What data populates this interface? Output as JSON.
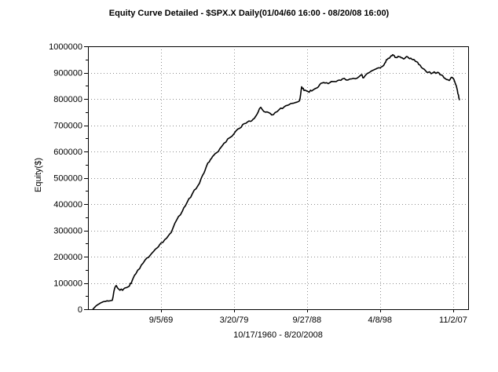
{
  "chart_data": {
    "type": "line",
    "title": "Equity Curve Detailed - $SPX.X Daily(01/04/60 16:00 - 08/20/08 16:00)",
    "date_range": "10/17/1960 - 8/20/2008",
    "ylabel": "Equity($)",
    "ylim": [
      0,
      1000000
    ],
    "xlim_decimal_years": [
      1960.14,
      2009.79
    ],
    "grid": "dotted gray at every 100000 horizontally and at each x tick vertically",
    "legend": "none",
    "line_color": "#000000",
    "y_ticks": [
      1000000,
      900000,
      800000,
      700000,
      600000,
      500000,
      400000,
      300000,
      200000,
      100000,
      0
    ],
    "y_minor_tick_step": 50000,
    "x_ticks": [
      {
        "label": "9/5/69",
        "date": 1969.68
      },
      {
        "label": "3/20/79",
        "date": 1979.22
      },
      {
        "label": "9/27/88",
        "date": 1988.74
      },
      {
        "label": "4/8/98",
        "date": 1998.27
      },
      {
        "label": "11/2/07",
        "date": 2007.84
      }
    ],
    "series": [
      {
        "name": "Equity",
        "points": [
          [
            1960.79,
            0
          ],
          [
            1961.17,
            12000
          ],
          [
            1961.58,
            20000
          ],
          [
            1962.09,
            28000
          ],
          [
            1962.6,
            32000
          ],
          [
            1963.32,
            34000
          ],
          [
            1963.63,
            80000
          ],
          [
            1963.83,
            90000
          ],
          [
            1964.14,
            77000
          ],
          [
            1964.65,
            72000
          ],
          [
            1965.17,
            82000
          ],
          [
            1965.58,
            90000
          ],
          [
            1965.88,
            107000
          ],
          [
            1966.4,
            135000
          ],
          [
            1967.12,
            168000
          ],
          [
            1967.83,
            195000
          ],
          [
            1968.45,
            212000
          ],
          [
            1969.17,
            233000
          ],
          [
            1969.68,
            252000
          ],
          [
            1970.4,
            270000
          ],
          [
            1971.01,
            292000
          ],
          [
            1971.73,
            340000
          ],
          [
            1972.45,
            372000
          ],
          [
            1973.07,
            405000
          ],
          [
            1973.78,
            440000
          ],
          [
            1974.5,
            470000
          ],
          [
            1975.12,
            510000
          ],
          [
            1975.63,
            545000
          ],
          [
            1976.14,
            570000
          ],
          [
            1976.55,
            585000
          ],
          [
            1977.17,
            600000
          ],
          [
            1977.68,
            622000
          ],
          [
            1978.4,
            648000
          ],
          [
            1979.22,
            668000
          ],
          [
            1979.94,
            688000
          ],
          [
            1980.55,
            706000
          ],
          [
            1981.17,
            716000
          ],
          [
            1981.68,
            722000
          ],
          [
            1982.19,
            740000
          ],
          [
            1982.71,
            768000
          ],
          [
            1983.12,
            752000
          ],
          [
            1983.73,
            748000
          ],
          [
            1984.35,
            740000
          ],
          [
            1985.07,
            758000
          ],
          [
            1985.78,
            770000
          ],
          [
            1986.4,
            778000
          ],
          [
            1987.01,
            784000
          ],
          [
            1987.63,
            790000
          ],
          [
            1987.83,
            800000
          ],
          [
            1988.04,
            846000
          ],
          [
            1988.35,
            832000
          ],
          [
            1988.86,
            828000
          ],
          [
            1989.37,
            830000
          ],
          [
            1989.88,
            840000
          ],
          [
            1990.4,
            854000
          ],
          [
            1990.91,
            862000
          ],
          [
            1991.52,
            858000
          ],
          [
            1992.14,
            866000
          ],
          [
            1992.75,
            870000
          ],
          [
            1993.37,
            876000
          ],
          [
            1994.09,
            872000
          ],
          [
            1994.81,
            878000
          ],
          [
            1995.52,
            884000
          ],
          [
            1995.83,
            892000
          ],
          [
            1996.14,
            880000
          ],
          [
            1996.86,
            900000
          ],
          [
            1997.47,
            910000
          ],
          [
            1997.88,
            916000
          ],
          [
            1998.5,
            922000
          ],
          [
            1998.91,
            936000
          ],
          [
            1999.22,
            950000
          ],
          [
            1999.63,
            960000
          ],
          [
            1999.93,
            968000
          ],
          [
            2000.24,
            958000
          ],
          [
            2000.65,
            962000
          ],
          [
            2001.06,
            956000
          ],
          [
            2001.47,
            953000
          ],
          [
            2001.88,
            960000
          ],
          [
            2002.29,
            955000
          ],
          [
            2002.7,
            950000
          ],
          [
            2003.01,
            942000
          ],
          [
            2003.52,
            928000
          ],
          [
            2004.04,
            913000
          ],
          [
            2004.55,
            901000
          ],
          [
            2005.16,
            899000
          ],
          [
            2005.78,
            901000
          ],
          [
            2006.29,
            891000
          ],
          [
            2006.8,
            877000
          ],
          [
            2007.32,
            870000
          ],
          [
            2007.62,
            882000
          ],
          [
            2007.93,
            874000
          ],
          [
            2008.24,
            850000
          ],
          [
            2008.45,
            820000
          ],
          [
            2008.64,
            797000
          ]
        ]
      }
    ]
  }
}
